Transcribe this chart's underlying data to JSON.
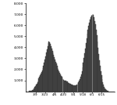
{
  "title": "",
  "ylabel": "",
  "xlabel": "",
  "ylim": [
    0,
    8000
  ],
  "yticks": [
    1000,
    2000,
    3000,
    4000,
    5000,
    6000,
    7000,
    8000
  ],
  "ytick_labels": [
    "1,000",
    "2,000",
    "3,000",
    "4,000",
    "5,000",
    "6,000",
    "7,000",
    "8,000"
  ],
  "xtick_labels": [
    "3/9",
    "3/23",
    "4/6",
    "4/20",
    "5/4",
    "5/18",
    "6/1",
    "6/15"
  ],
  "bar_color": "#666666",
  "bar_edge_color": "#222222",
  "background_color": "#ffffff",
  "values": [
    0,
    0,
    1,
    2,
    4,
    8,
    15,
    30,
    55,
    90,
    140,
    200,
    280,
    380,
    480,
    580,
    700,
    850,
    1000,
    1150,
    1300,
    1450,
    1600,
    1750,
    1900,
    2100,
    2350,
    2600,
    2900,
    3200,
    3500,
    3800,
    4100,
    4350,
    4500,
    4450,
    4300,
    4100,
    3900,
    3700,
    3500,
    3300,
    3100,
    2900,
    2700,
    2500,
    2300,
    2100,
    1950,
    1800,
    1650,
    1500,
    1400,
    1300,
    1200,
    1100,
    1050,
    1000,
    970,
    940,
    900,
    860,
    820,
    780,
    740,
    700,
    660,
    630,
    600,
    580,
    560,
    550,
    540,
    545,
    560,
    590,
    640,
    720,
    820,
    950,
    1100,
    1300,
    1550,
    1850,
    2200,
    2600,
    3000,
    3450,
    3900,
    4350,
    4800,
    5200,
    5600,
    5950,
    6250,
    6500,
    6700,
    6850,
    6950,
    7000,
    6900,
    6700,
    6400,
    6050,
    5600,
    5100,
    4550,
    3950,
    3350,
    2800,
    2300,
    1850,
    1450,
    1100,
    800,
    580,
    400,
    270,
    170,
    100,
    55,
    30,
    15,
    5,
    2,
    1,
    0,
    0,
    0,
    0,
    0,
    0
  ]
}
